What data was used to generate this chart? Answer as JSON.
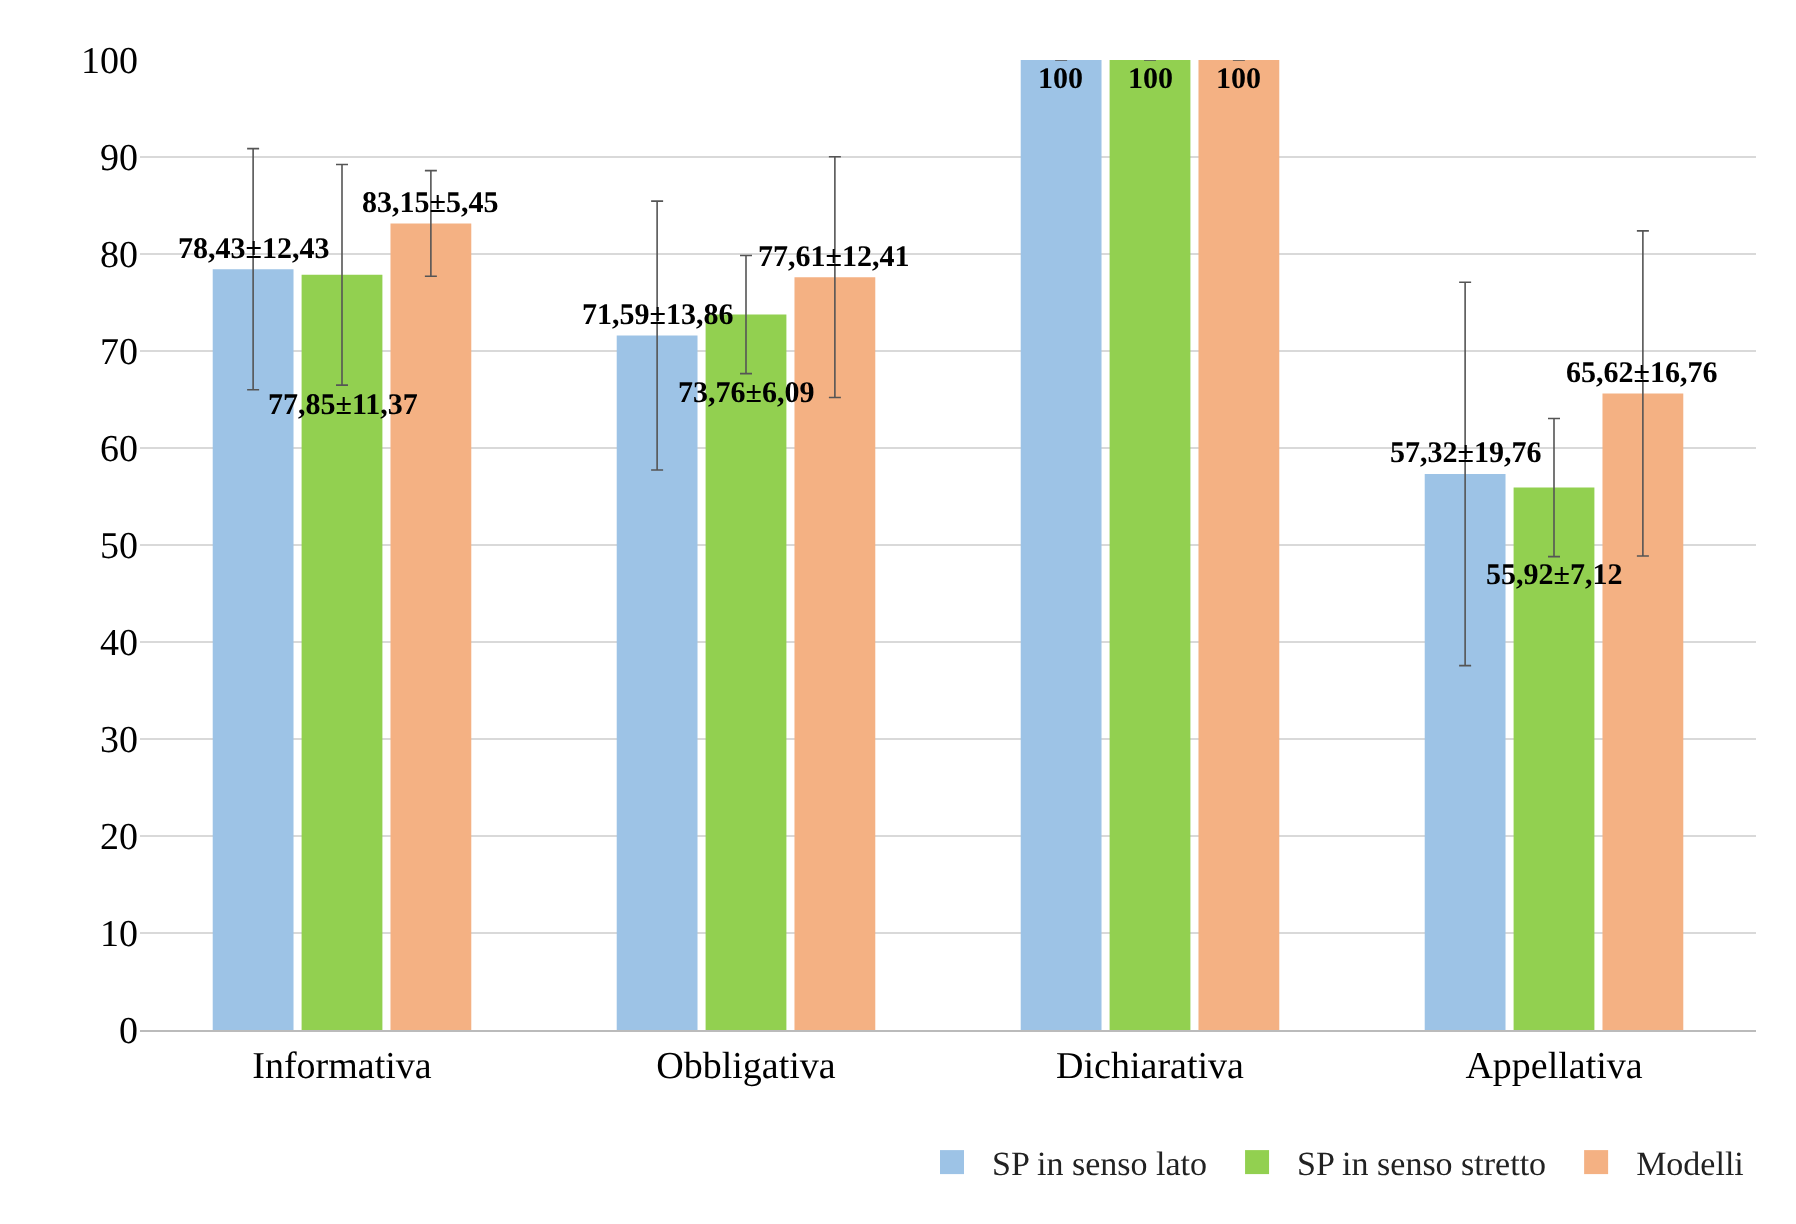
{
  "chart_data": {
    "type": "bar",
    "categories": [
      "Informativa",
      "Obbligativa",
      "Dichiarativa",
      "Appellativa"
    ],
    "series": [
      {
        "name": "SP in senso lato",
        "color": "#9dc3e6",
        "values": [
          78.43,
          71.59,
          100,
          57.32
        ],
        "errors": [
          12.43,
          13.86,
          null,
          19.76
        ],
        "value_labels": [
          "78,43±12,43",
          "71,59±13,86",
          "100",
          "57,32±19,76"
        ]
      },
      {
        "name": "SP in senso stretto",
        "color": "#92d050",
        "values": [
          77.85,
          73.76,
          100,
          55.92
        ],
        "errors": [
          11.37,
          6.09,
          null,
          7.12
        ],
        "value_labels": [
          "77,85±11,37",
          "73,76±6,09",
          "100",
          "55,92±7,12"
        ]
      },
      {
        "name": "Modelli",
        "color": "#f4b183",
        "values": [
          83.15,
          77.61,
          100,
          65.62
        ],
        "errors": [
          5.45,
          12.41,
          null,
          16.76
        ],
        "value_labels": [
          "83,15±5,45",
          "77,61±12,41",
          "100",
          "65,62±16,76"
        ]
      }
    ],
    "ylim": [
      0,
      100
    ],
    "yticks": [
      0,
      10,
      20,
      30,
      40,
      50,
      60,
      70,
      80,
      90,
      100
    ],
    "grid": "y",
    "legend": "bottom right"
  }
}
